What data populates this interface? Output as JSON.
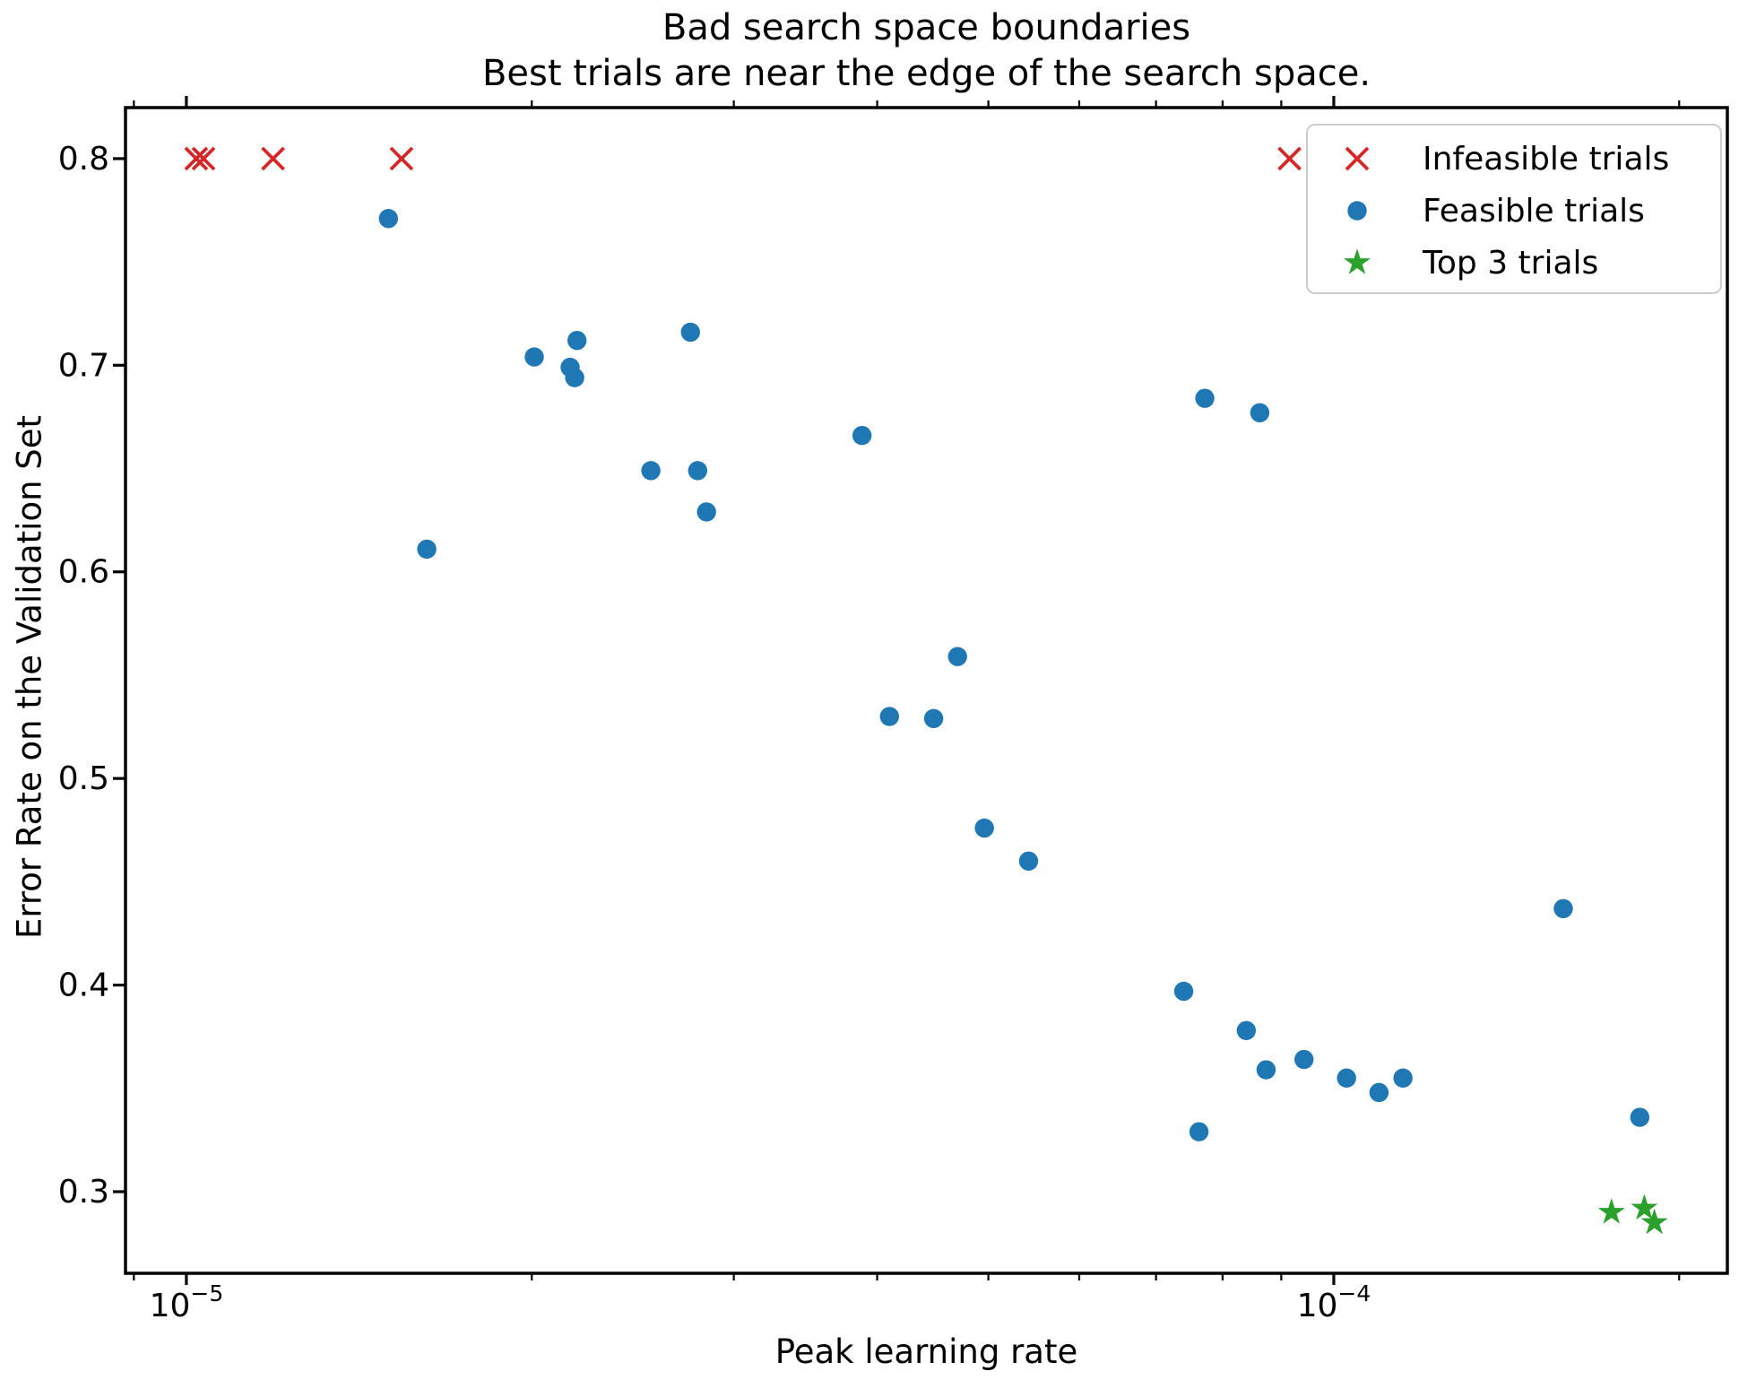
{
  "figure": {
    "background": "#ffffff",
    "spine_color": "#000000"
  },
  "chart_data": {
    "type": "scatter",
    "title": "Bad search space boundaries",
    "subtitle": "Best trials are near the edge of the search space.",
    "xlabel": "Peak learning rate",
    "ylabel": "Error Rate on the Validation Set",
    "x_scale": "log",
    "y_scale": "linear",
    "xlim": [
      8.85e-06,
      0.0002203
    ],
    "ylim": [
      0.2605,
      0.8247
    ],
    "grid": false,
    "legend_position": "upper right",
    "x_major_ticks": [
      {
        "value": 1e-05,
        "base": "10",
        "exponent": "−5"
      },
      {
        "value": 0.0001,
        "base": "10",
        "exponent": "−4"
      }
    ],
    "y_ticks": [
      0.3,
      0.4,
      0.5,
      0.6,
      0.7,
      0.8
    ],
    "series": [
      {
        "name": "Infeasible trials",
        "marker": "x",
        "color": "#d62728",
        "points": [
          [
            1.02e-05,
            0.8
          ],
          [
            1.035e-05,
            0.8
          ],
          [
            1.19e-05,
            0.8
          ],
          [
            1.54e-05,
            0.8
          ],
          [
            9.15e-05,
            0.8
          ]
        ]
      },
      {
        "name": "Feasible trials",
        "marker": "circle",
        "color": "#1f77b4",
        "points": [
          [
            1.5e-05,
            0.771
          ],
          [
            1.62e-05,
            0.611
          ],
          [
            2.01e-05,
            0.704
          ],
          [
            2.19e-05,
            0.712
          ],
          [
            2.16e-05,
            0.699
          ],
          [
            2.18e-05,
            0.694
          ],
          [
            2.75e-05,
            0.716
          ],
          [
            2.54e-05,
            0.649
          ],
          [
            2.79e-05,
            0.649
          ],
          [
            2.84e-05,
            0.629
          ],
          [
            3.88e-05,
            0.666
          ],
          [
            4.1e-05,
            0.53
          ],
          [
            4.48e-05,
            0.529
          ],
          [
            4.7e-05,
            0.559
          ],
          [
            4.96e-05,
            0.476
          ],
          [
            5.42e-05,
            0.46
          ],
          [
            7.4e-05,
            0.397
          ],
          [
            7.63e-05,
            0.329
          ],
          [
            7.72e-05,
            0.684
          ],
          [
            8.62e-05,
            0.677
          ],
          [
            8.39e-05,
            0.378
          ],
          [
            8.73e-05,
            0.359
          ],
          [
            9.42e-05,
            0.364
          ],
          [
            0.0001026,
            0.355
          ],
          [
            0.0001095,
            0.348
          ],
          [
            0.0001149,
            0.355
          ],
          [
            0.0001585,
            0.437
          ],
          [
            0.0001848,
            0.336
          ]
        ]
      },
      {
        "name": "Top 3 trials",
        "marker": "star",
        "color": "#2ca02c",
        "points": [
          [
            0.0001746,
            0.29
          ],
          [
            0.0001865,
            0.292
          ],
          [
            0.0001903,
            0.285
          ]
        ]
      }
    ]
  }
}
